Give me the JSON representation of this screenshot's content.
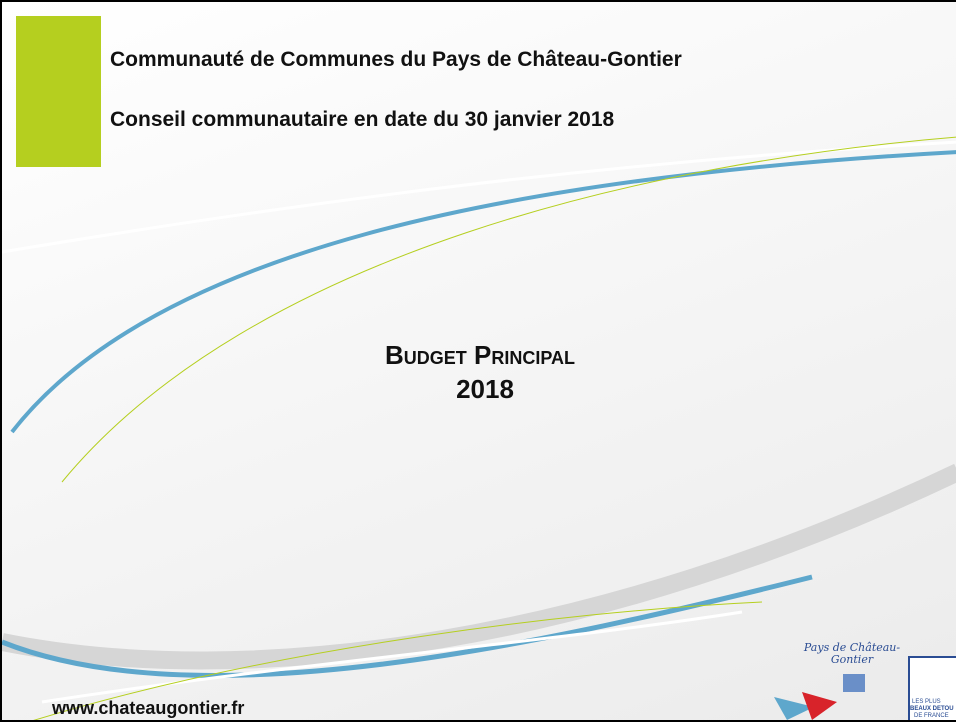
{
  "header": {
    "organization": "Communauté de Communes du Pays de Château-Gontier",
    "meeting": "Conseil communautaire en date du 30 janvier 2018"
  },
  "title": {
    "line1": "Budget Principal",
    "line2": "2018"
  },
  "footer": {
    "url": "www.chateaugontier.fr"
  },
  "logos": {
    "pays": "Pays de Château-Gontier",
    "detours": [
      "LES PLUS",
      "BEAUX DETOU",
      "DE FRANCE"
    ]
  }
}
